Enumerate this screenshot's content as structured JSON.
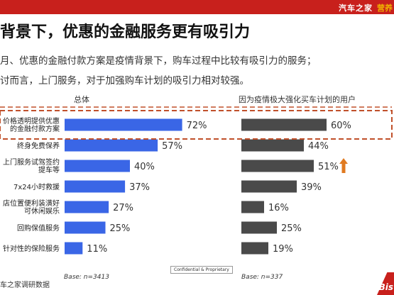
{
  "header": {
    "brand": "汽车之家",
    "brand_tag": "营养"
  },
  "title": "背景下，优惠的金融服务更有吸引力",
  "description": [
    "月、优惠的金融付款方案是疫情背景下，购车过程中比较有吸引力的服务；",
    "讨而言，上门服务，对于加强购车计划的吸引力相对较强。"
  ],
  "footer": {
    "source": "车之家调研数据",
    "confidential": "Confidential & Proprietary",
    "base_left": "Base: n=3413",
    "base_right": "Base: n=337",
    "logo": "Bis"
  },
  "colors": {
    "left_bar": "#3a66e6",
    "right_bar": "#4a4a4a",
    "highlight": "#c0502a",
    "arrow": "#e07a20",
    "accent": "#c8201c"
  },
  "chart_data": [
    {
      "type": "bar",
      "orientation": "horizontal",
      "title": "总体",
      "categories": [
        "价格透明提供优惠的金融付款方案",
        "终身免费保养",
        "上门服务试驾签约提车等",
        "7x24小时救援",
        "店位置便利装潢好可休闲娱乐",
        "回购保值服务",
        "针对性的保险服务"
      ],
      "category_lines": [
        [
          "价格透明提供优惠",
          "的金融付款方案"
        ],
        [
          "终身免费保养"
        ],
        [
          "上门服务试驾签约",
          "提车等"
        ],
        [
          "7x24小时救援"
        ],
        [
          "店位置便利装潢好",
          "可休闲娱乐"
        ],
        [
          "回购保值服务"
        ],
        [
          "针对性的保险服务"
        ]
      ],
      "values": [
        72,
        57,
        40,
        37,
        27,
        25,
        11
      ],
      "labels": [
        "72%",
        "57%",
        "40%",
        "37%",
        "27%",
        "25%",
        "11%"
      ],
      "xlim": [
        0,
        100
      ],
      "highlight_index": 0
    },
    {
      "type": "bar",
      "orientation": "horizontal",
      "title": "因为疫情极大强化买车计划的用户",
      "categories": [
        "价格透明提供优惠的金融付款方案",
        "终身免费保养",
        "上门服务试驾签约提车等",
        "7x24小时救援",
        "店位置便利装潢好可休闲娱乐",
        "回购保值服务",
        "针对性的保险服务"
      ],
      "values": [
        60,
        44,
        51,
        39,
        16,
        25,
        19
      ],
      "labels": [
        "60%",
        "44%",
        "51%",
        "39%",
        "16%",
        "25%",
        "19%"
      ],
      "xlim": [
        0,
        100
      ],
      "arrow_up_index": 2
    }
  ]
}
